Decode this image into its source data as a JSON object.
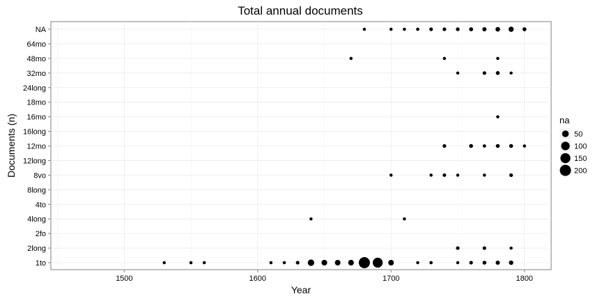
{
  "chart_data": {
    "type": "scatter",
    "title": "Total annual documents",
    "xlabel": "Year",
    "ylabel": "Documents (n)",
    "xlim": [
      1445,
      1820
    ],
    "x_ticks": [
      1500,
      1600,
      1700,
      1800
    ],
    "categories": [
      "1to",
      "2long",
      "2fo",
      "4long",
      "4to",
      "8long",
      "8vo",
      "12long",
      "12mo",
      "16long",
      "16mo",
      "18mo",
      "24long",
      "32mo",
      "48mo",
      "64mo",
      "NA"
    ],
    "grid": true,
    "legend": {
      "title": "na",
      "placement": "right",
      "sizes": [
        50,
        100,
        150,
        200
      ]
    },
    "points": [
      {
        "x": 1680,
        "y": "NA",
        "n": 2
      },
      {
        "x": 1700,
        "y": "NA",
        "n": 2
      },
      {
        "x": 1710,
        "y": "NA",
        "n": 2
      },
      {
        "x": 1720,
        "y": "NA",
        "n": 3
      },
      {
        "x": 1730,
        "y": "NA",
        "n": 5
      },
      {
        "x": 1740,
        "y": "NA",
        "n": 5
      },
      {
        "x": 1750,
        "y": "NA",
        "n": 6
      },
      {
        "x": 1760,
        "y": "NA",
        "n": 8
      },
      {
        "x": 1770,
        "y": "NA",
        "n": 10
      },
      {
        "x": 1780,
        "y": "NA",
        "n": 14
      },
      {
        "x": 1790,
        "y": "NA",
        "n": 22
      },
      {
        "x": 1800,
        "y": "NA",
        "n": 8
      },
      {
        "x": 1670,
        "y": "48mo",
        "n": 2
      },
      {
        "x": 1740,
        "y": "48mo",
        "n": 2
      },
      {
        "x": 1780,
        "y": "48mo",
        "n": 2
      },
      {
        "x": 1750,
        "y": "32mo",
        "n": 2
      },
      {
        "x": 1770,
        "y": "32mo",
        "n": 5
      },
      {
        "x": 1780,
        "y": "32mo",
        "n": 7
      },
      {
        "x": 1790,
        "y": "32mo",
        "n": 2
      },
      {
        "x": 1780,
        "y": "16mo",
        "n": 2
      },
      {
        "x": 1740,
        "y": "12mo",
        "n": 5
      },
      {
        "x": 1760,
        "y": "12mo",
        "n": 7
      },
      {
        "x": 1770,
        "y": "12mo",
        "n": 3
      },
      {
        "x": 1780,
        "y": "12mo",
        "n": 7
      },
      {
        "x": 1790,
        "y": "12mo",
        "n": 7
      },
      {
        "x": 1800,
        "y": "12mo",
        "n": 2
      },
      {
        "x": 1700,
        "y": "8vo",
        "n": 2
      },
      {
        "x": 1730,
        "y": "8vo",
        "n": 2
      },
      {
        "x": 1740,
        "y": "8vo",
        "n": 4
      },
      {
        "x": 1750,
        "y": "8vo",
        "n": 2
      },
      {
        "x": 1770,
        "y": "8vo",
        "n": 2
      },
      {
        "x": 1790,
        "y": "8vo",
        "n": 5
      },
      {
        "x": 1640,
        "y": "4long",
        "n": 2
      },
      {
        "x": 1710,
        "y": "4long",
        "n": 2
      },
      {
        "x": 1750,
        "y": "2long",
        "n": 5
      },
      {
        "x": 1770,
        "y": "2long",
        "n": 5
      },
      {
        "x": 1790,
        "y": "2long",
        "n": 2
      },
      {
        "x": 1530,
        "y": "1to",
        "n": 2
      },
      {
        "x": 1550,
        "y": "1to",
        "n": 2
      },
      {
        "x": 1560,
        "y": "1to",
        "n": 2
      },
      {
        "x": 1610,
        "y": "1to",
        "n": 2
      },
      {
        "x": 1620,
        "y": "1to",
        "n": 2
      },
      {
        "x": 1630,
        "y": "1to",
        "n": 5
      },
      {
        "x": 1640,
        "y": "1to",
        "n": 45
      },
      {
        "x": 1650,
        "y": "1to",
        "n": 30
      },
      {
        "x": 1660,
        "y": "1to",
        "n": 28
      },
      {
        "x": 1670,
        "y": "1to",
        "n": 30
      },
      {
        "x": 1680,
        "y": "1to",
        "n": 200
      },
      {
        "x": 1690,
        "y": "1to",
        "n": 150
      },
      {
        "x": 1700,
        "y": "1to",
        "n": 28
      },
      {
        "x": 1720,
        "y": "1to",
        "n": 2
      },
      {
        "x": 1730,
        "y": "1to",
        "n": 3
      },
      {
        "x": 1750,
        "y": "1to",
        "n": 2
      },
      {
        "x": 1760,
        "y": "1to",
        "n": 5
      },
      {
        "x": 1770,
        "y": "1to",
        "n": 7
      },
      {
        "x": 1780,
        "y": "1to",
        "n": 10
      },
      {
        "x": 1790,
        "y": "1to",
        "n": 12
      }
    ]
  }
}
